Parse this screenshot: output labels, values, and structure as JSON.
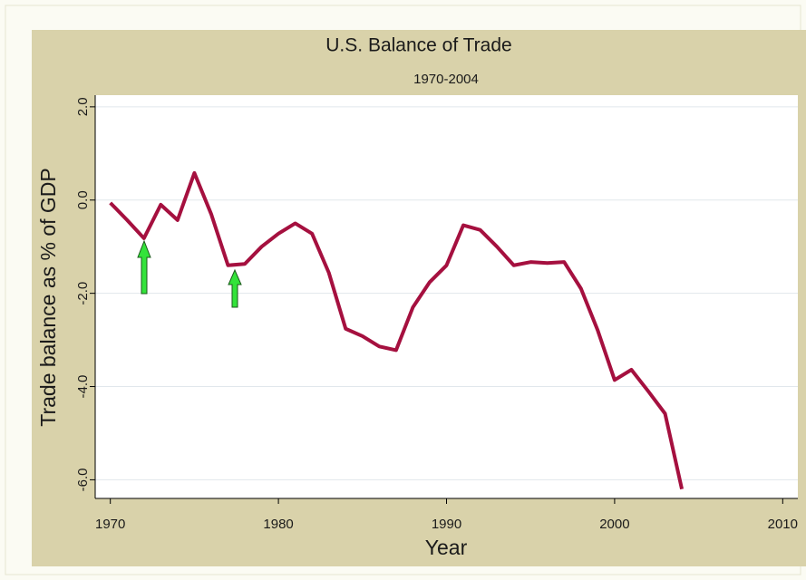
{
  "chart_data": {
    "type": "line",
    "title": "U.S. Balance of Trade",
    "subtitle": "1970-2004",
    "x_label": "Year",
    "y_label": "Trade balance as % of GDP",
    "x": [
      1970,
      1971,
      1972,
      1973,
      1974,
      1975,
      1976,
      1977,
      1978,
      1979,
      1980,
      1981,
      1982,
      1983,
      1984,
      1985,
      1986,
      1987,
      1988,
      1989,
      1990,
      1991,
      1992,
      1993,
      1994,
      1995,
      1996,
      1997,
      1998,
      1999,
      2000,
      2001,
      2002,
      2003,
      2004
    ],
    "series": [
      {
        "name": "Trade balance",
        "color": "#a5103f",
        "values": [
          -0.06,
          -0.43,
          -0.82,
          -0.1,
          -0.43,
          0.58,
          -0.3,
          -1.4,
          -1.37,
          -1.0,
          -0.72,
          -0.5,
          -0.72,
          -1.56,
          -2.76,
          -2.92,
          -3.14,
          -3.22,
          -2.3,
          -1.76,
          -1.4,
          -0.54,
          -0.64,
          -1.0,
          -1.4,
          -1.33,
          -1.35,
          -1.33,
          -1.9,
          -2.8,
          -3.86,
          -3.64,
          -4.1,
          -4.58,
          -6.2
        ]
      }
    ],
    "xlim": [
      1969.1,
      2010.9
    ],
    "xticks": [
      1970,
      1980,
      1990,
      2000,
      2010
    ],
    "ylim": [
      -6.4,
      2.25
    ],
    "yticks": [
      {
        "value": 2,
        "label": "2.0"
      },
      {
        "value": 0,
        "label": "0.0"
      },
      {
        "value": -2,
        "label": "-2.0"
      },
      {
        "value": -4,
        "label": "-4.0"
      },
      {
        "value": -6,
        "label": "-6.0"
      }
    ],
    "grid": true
  }
}
